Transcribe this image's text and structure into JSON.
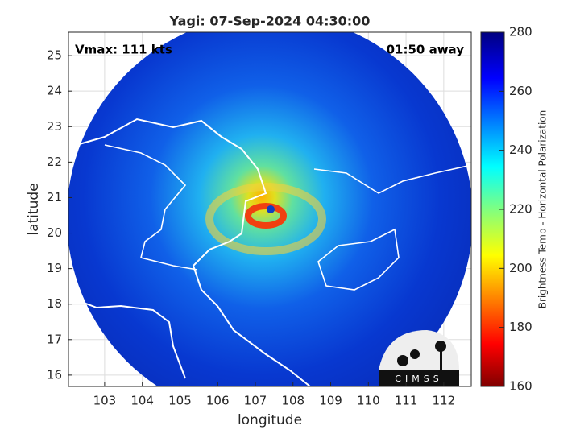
{
  "chart_data": {
    "type": "map",
    "title": "Yagi: 07-Sep-2024 04:30:00",
    "annotations": [
      "Vmax: 111 kts",
      "01:50 away"
    ],
    "x_label": "longitude",
    "y_label": "latitude",
    "xlim": [
      102.04,
      112.73
    ],
    "xticks": [
      103,
      104,
      105,
      106,
      107,
      108,
      109,
      110,
      111,
      112
    ],
    "ylim": [
      15.68,
      25.66
    ],
    "yticks": [
      16,
      17,
      18,
      19,
      20,
      21,
      22,
      23,
      24,
      25
    ],
    "grid": true,
    "colorbar": {
      "label": "Brightness Temp - Horizontal Polarization",
      "lim": [
        160,
        280
      ],
      "ticks": [
        160,
        180,
        200,
        220,
        240,
        260,
        280
      ]
    },
    "logo": "CIMSS"
  }
}
